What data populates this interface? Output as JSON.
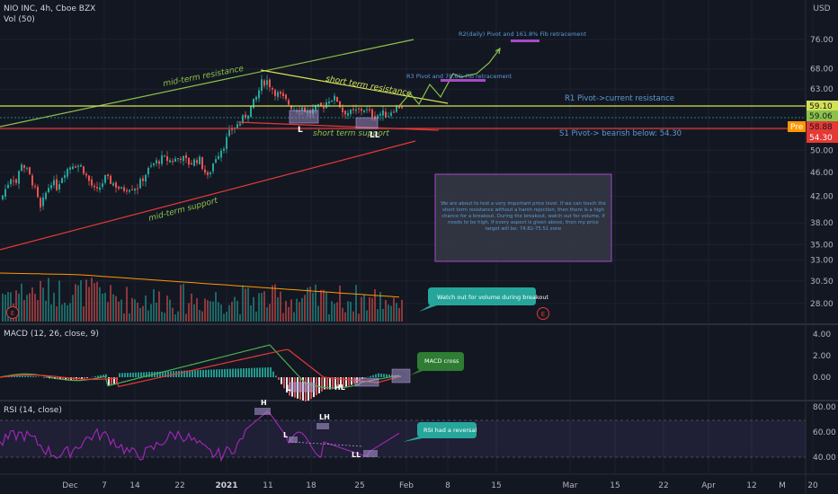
{
  "header": {
    "symbol": "NIO INC, 4h, Cboe BZX",
    "vol": "Vol (50)",
    "currency": "USD"
  },
  "colors": {
    "bg": "#131722",
    "up": "#26a69a",
    "down": "#ef5350",
    "green": "#8bc34a",
    "red": "#e53935",
    "yellow": "#d4e157",
    "blue": "#5b9bd5",
    "purple": "#a64ac9",
    "callout": "#26a69a"
  },
  "x_axis": {
    "ticks": [
      "Dec",
      "7",
      "14",
      "22",
      "2021",
      "11",
      "18",
      "25",
      "Feb",
      "8",
      "15",
      "Mar",
      "15",
      "22",
      "Apr",
      "12",
      "20",
      "M"
    ]
  },
  "price_axis": {
    "ticks": [
      "76.00",
      "68.00",
      "63.00",
      "54.00",
      "50.00",
      "46.00",
      "42.00",
      "38.00",
      "35.00",
      "33.00",
      "30.50",
      "28.00"
    ],
    "badges": [
      {
        "text": "59.10",
        "color": "#d4e157",
        "text_color": "#131722"
      },
      {
        "text": "59.06",
        "color": "#8bc34a",
        "text_color": "#131722"
      },
      {
        "text": "58.88",
        "color": "#e53935",
        "text_color": "#131722",
        "tag": "Pre"
      },
      {
        "text": "54.30",
        "color": "#e53935",
        "text_color": "#ffffff"
      }
    ]
  },
  "annotations": {
    "mid_resistance": "mid-term resistance",
    "short_resistance": "short term resistance",
    "short_support": "short term support",
    "mid_support": "mid-term support",
    "r2": "R2(daily) Pivot and 161.8% Fib retracement",
    "r3": "R3 Pivot and 78.6% Fib retracement",
    "r1": "R1 Pivot->current resistance",
    "s1": "S1 Pivot-> bearish below: 54.30",
    "L1": "L",
    "LL1": "LL",
    "note": "We are about to test a very important price level. If we can touch the short term resistance without a harsh rejection, then there is a high chance for a breakout. During the breakout, watch out for volume, if needs to be high. If every aspect is given above, then my price target will be: 74.82-75.51 zone",
    "volume_callout": "Watch out for volume during breakout",
    "earnings1": "E",
    "earnings2": "E"
  },
  "macd": {
    "label": "MACD (12, 26, close, 9)",
    "ticks": [
      "4.00",
      "2.00",
      "0.00"
    ],
    "callout": "MACD cross",
    "L": "L",
    "HL": "HL"
  },
  "rsi": {
    "label": "RSI (14, close)",
    "ticks": [
      "80.00",
      "60.00",
      "40.00"
    ],
    "callout": "RSI had a reversal",
    "H": "H",
    "L": "L",
    "LH": "LH",
    "LL": "LL"
  },
  "chart_data": {
    "type": "candlestick",
    "title": "NIO INC, 4h, Cboe BZX",
    "timeframe": "4h",
    "ylim": [
      27,
      82
    ],
    "y_scale": "log",
    "levels": [
      {
        "name": "R1 Pivot->current resistance",
        "price": 59.1
      },
      {
        "name": "S1 Pivot-> bearish below: 54.30",
        "price": 54.3
      }
    ],
    "last_price": 59.06,
    "premarket_price": 58.88,
    "price_target_zone": [
      74.82,
      75.51
    ],
    "close_path": [
      [
        0,
        41.5
      ],
      [
        6,
        43.5
      ],
      [
        12,
        45.5
      ],
      [
        18,
        44
      ],
      [
        22,
        48
      ],
      [
        30,
        46
      ],
      [
        36,
        44
      ],
      [
        44,
        40
      ],
      [
        50,
        42.5
      ],
      [
        56,
        44.5
      ],
      [
        62,
        43.5
      ],
      [
        70,
        46
      ],
      [
        80,
        47.5
      ],
      [
        90,
        47
      ],
      [
        96,
        45
      ],
      [
        106,
        42.5
      ],
      [
        116,
        45
      ],
      [
        126,
        44
      ],
      [
        134,
        43
      ],
      [
        142,
        43.5
      ],
      [
        152,
        43.5
      ],
      [
        162,
        46
      ],
      [
        170,
        47.5
      ],
      [
        180,
        48.5
      ],
      [
        190,
        48
      ],
      [
        200,
        48.8
      ],
      [
        210,
        47.5
      ],
      [
        220,
        48.5
      ],
      [
        230,
        45
      ],
      [
        238,
        48.5
      ],
      [
        248,
        51
      ],
      [
        256,
        54
      ],
      [
        266,
        55.5
      ],
      [
        276,
        58
      ],
      [
        284,
        61
      ],
      [
        290,
        64.5
      ],
      [
        296,
        65
      ],
      [
        304,
        62.5
      ],
      [
        310,
        61.5
      ],
      [
        318,
        60
      ],
      [
        326,
        58.5
      ],
      [
        334,
        59
      ],
      [
        342,
        57.5
      ],
      [
        350,
        58.5
      ],
      [
        358,
        59
      ],
      [
        366,
        61
      ],
      [
        374,
        60.5
      ],
      [
        380,
        58
      ],
      [
        390,
        57.5
      ],
      [
        396,
        58
      ],
      [
        404,
        58.5
      ],
      [
        410,
        57.5
      ],
      [
        416,
        57
      ],
      [
        424,
        57.5
      ],
      [
        430,
        57
      ],
      [
        436,
        58.5
      ],
      [
        442,
        59
      ],
      [
        446,
        59.06
      ]
    ]
  }
}
